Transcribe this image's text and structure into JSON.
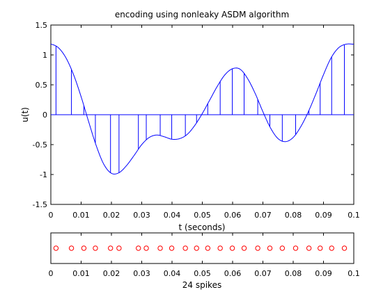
{
  "chart_data": [
    {
      "type": "line",
      "title": "encoding using nonleaky ASDM algorithm",
      "xlabel": "t (seconds)",
      "ylabel": "u(t)",
      "xlim": [
        0,
        0.1
      ],
      "ylim": [
        -1.5,
        1.5
      ],
      "xticks": [
        0,
        0.01,
        0.02,
        0.03,
        0.04,
        0.05,
        0.06,
        0.07,
        0.08,
        0.09,
        0.1
      ],
      "xtick_labels": [
        "0",
        "0.01",
        "0.02",
        "0.03",
        "0.04",
        "0.05",
        "0.06",
        "0.07",
        "0.08",
        "0.09",
        "0.1"
      ],
      "yticks": [
        -1.5,
        -1,
        -0.5,
        0,
        0.5,
        1,
        1.5
      ],
      "ytick_labels": [
        "-1.5",
        "-1",
        "-0.5",
        "0",
        "0.5",
        "1",
        "1.5"
      ],
      "grid": false,
      "line_color": "#0000ff",
      "series": [
        {
          "x": [
            0,
            0.0025,
            0.005,
            0.0075,
            0.01,
            0.0125,
            0.015,
            0.0175,
            0.02,
            0.0225,
            0.025,
            0.0275,
            0.03,
            0.0325,
            0.035,
            0.0375,
            0.04,
            0.0425,
            0.045,
            0.0475,
            0.05,
            0.0525,
            0.055,
            0.0575,
            0.06,
            0.0625,
            0.065,
            0.0675,
            0.07,
            0.0725,
            0.075,
            0.0775,
            0.08,
            0.0825,
            0.085,
            0.0875,
            0.09,
            0.0925,
            0.095,
            0.0975,
            0.1
          ],
          "values": [
            1.18,
            1.12,
            0.95,
            0.67,
            0.3,
            -0.12,
            -0.52,
            -0.83,
            -0.98,
            -0.97,
            -0.85,
            -0.68,
            -0.5,
            -0.38,
            -0.34,
            -0.37,
            -0.41,
            -0.4,
            -0.33,
            -0.18,
            0.02,
            0.25,
            0.48,
            0.67,
            0.77,
            0.76,
            0.6,
            0.35,
            0.05,
            -0.22,
            -0.4,
            -0.45,
            -0.38,
            -0.2,
            0.05,
            0.35,
            0.67,
            0.95,
            1.12,
            1.18,
            1.18
          ]
        }
      ],
      "stems": {
        "color": "#0000ff",
        "t": [
          0.0017,
          0.0068,
          0.0109,
          0.0147,
          0.0197,
          0.0225,
          0.0289,
          0.0315,
          0.0361,
          0.0399,
          0.0444,
          0.0481,
          0.0518,
          0.0559,
          0.0599,
          0.0638,
          0.0683,
          0.0723,
          0.0764,
          0.0808,
          0.0852,
          0.0889,
          0.0927,
          0.0969
        ]
      }
    },
    {
      "type": "scatter",
      "xlabel": "24 spikes",
      "xlim": [
        0,
        0.1
      ],
      "xticks": [
        0,
        0.01,
        0.02,
        0.03,
        0.04,
        0.05,
        0.06,
        0.07,
        0.08,
        0.09,
        0.1
      ],
      "xtick_labels": [
        "0",
        "0.01",
        "0.02",
        "0.03",
        "0.04",
        "0.05",
        "0.06",
        "0.07",
        "0.08",
        "0.09",
        "0.1"
      ],
      "marker": "circle",
      "marker_color": "#ff0000",
      "x": [
        0.0017,
        0.0068,
        0.0109,
        0.0147,
        0.0197,
        0.0225,
        0.0289,
        0.0315,
        0.0361,
        0.0399,
        0.0444,
        0.0481,
        0.0518,
        0.0559,
        0.0599,
        0.0638,
        0.0683,
        0.0723,
        0.0764,
        0.0808,
        0.0852,
        0.0889,
        0.0927,
        0.0969
      ]
    }
  ]
}
